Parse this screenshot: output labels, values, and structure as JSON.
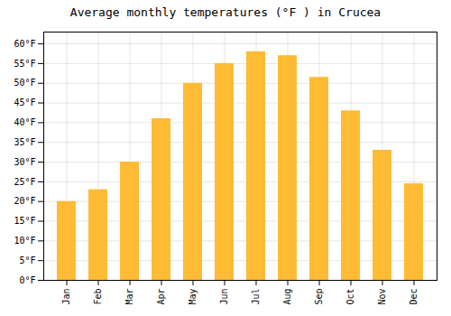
{
  "chart_data": {
    "type": "bar",
    "title": "Average monthly temperatures (°F ) in Crucea",
    "categories": [
      "Jan",
      "Feb",
      "Mar",
      "Apr",
      "May",
      "Jun",
      "Jul",
      "Aug",
      "Sep",
      "Oct",
      "Nov",
      "Dec"
    ],
    "values": [
      20,
      23,
      30,
      41,
      50,
      55,
      58,
      57,
      51.5,
      43,
      33,
      24.5
    ],
    "color": "#FFBB33",
    "ylim": [
      0,
      63
    ],
    "yticks": [
      {
        "value": 0,
        "label": "0°F"
      },
      {
        "value": 5,
        "label": "5°F"
      },
      {
        "value": 10,
        "label": "10°F"
      },
      {
        "value": 15,
        "label": "15°F"
      },
      {
        "value": 20,
        "label": "20°F"
      },
      {
        "value": 25,
        "label": "25°F"
      },
      {
        "value": 30,
        "label": "30°F"
      },
      {
        "value": 35,
        "label": "35°F"
      },
      {
        "value": 40,
        "label": "40°F"
      },
      {
        "value": 45,
        "label": "45°F"
      },
      {
        "value": 50,
        "label": "50°F"
      },
      {
        "value": 55,
        "label": "55°F"
      },
      {
        "value": 60,
        "label": "60°F"
      }
    ],
    "grid": true
  }
}
